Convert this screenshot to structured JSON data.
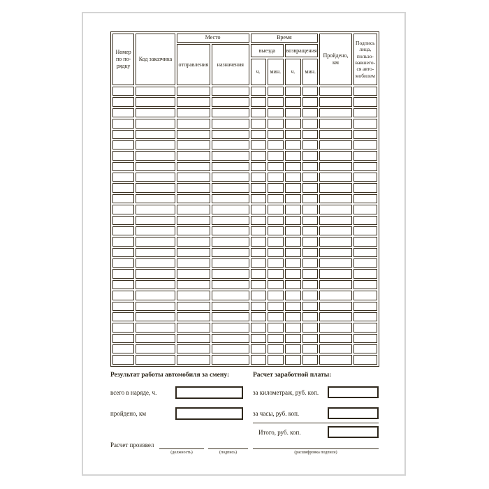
{
  "table": {
    "headers": {
      "number": "Номер по по-рядку",
      "client_code": "Код заказчика",
      "place": "Место",
      "departure_place": "отправления",
      "destination": "назначения",
      "time": "Время",
      "departure_time": "выезда",
      "return_time": "возвращения",
      "hours": "ч.",
      "minutes": "мин.",
      "distance": "Пройдено, км",
      "signature": "Подпись лица, пользо-вавшего-ся авто-мобилем"
    },
    "row_count": 26
  },
  "results": {
    "title": "Результат работы автомобиля за смену:",
    "total_hours": "всего в наряде, ч.",
    "distance": "пройдено, км"
  },
  "salary": {
    "title": "Расчет заработной платы:",
    "mileage": "за километраж, руб. коп.",
    "hours": "за часы, руб. коп.",
    "total": "Итого, руб. коп."
  },
  "signoff": {
    "label": "Расчет произвел",
    "position": "(должность)",
    "signature": "(подпись)",
    "decoding": "(расшифровка подписи)"
  }
}
